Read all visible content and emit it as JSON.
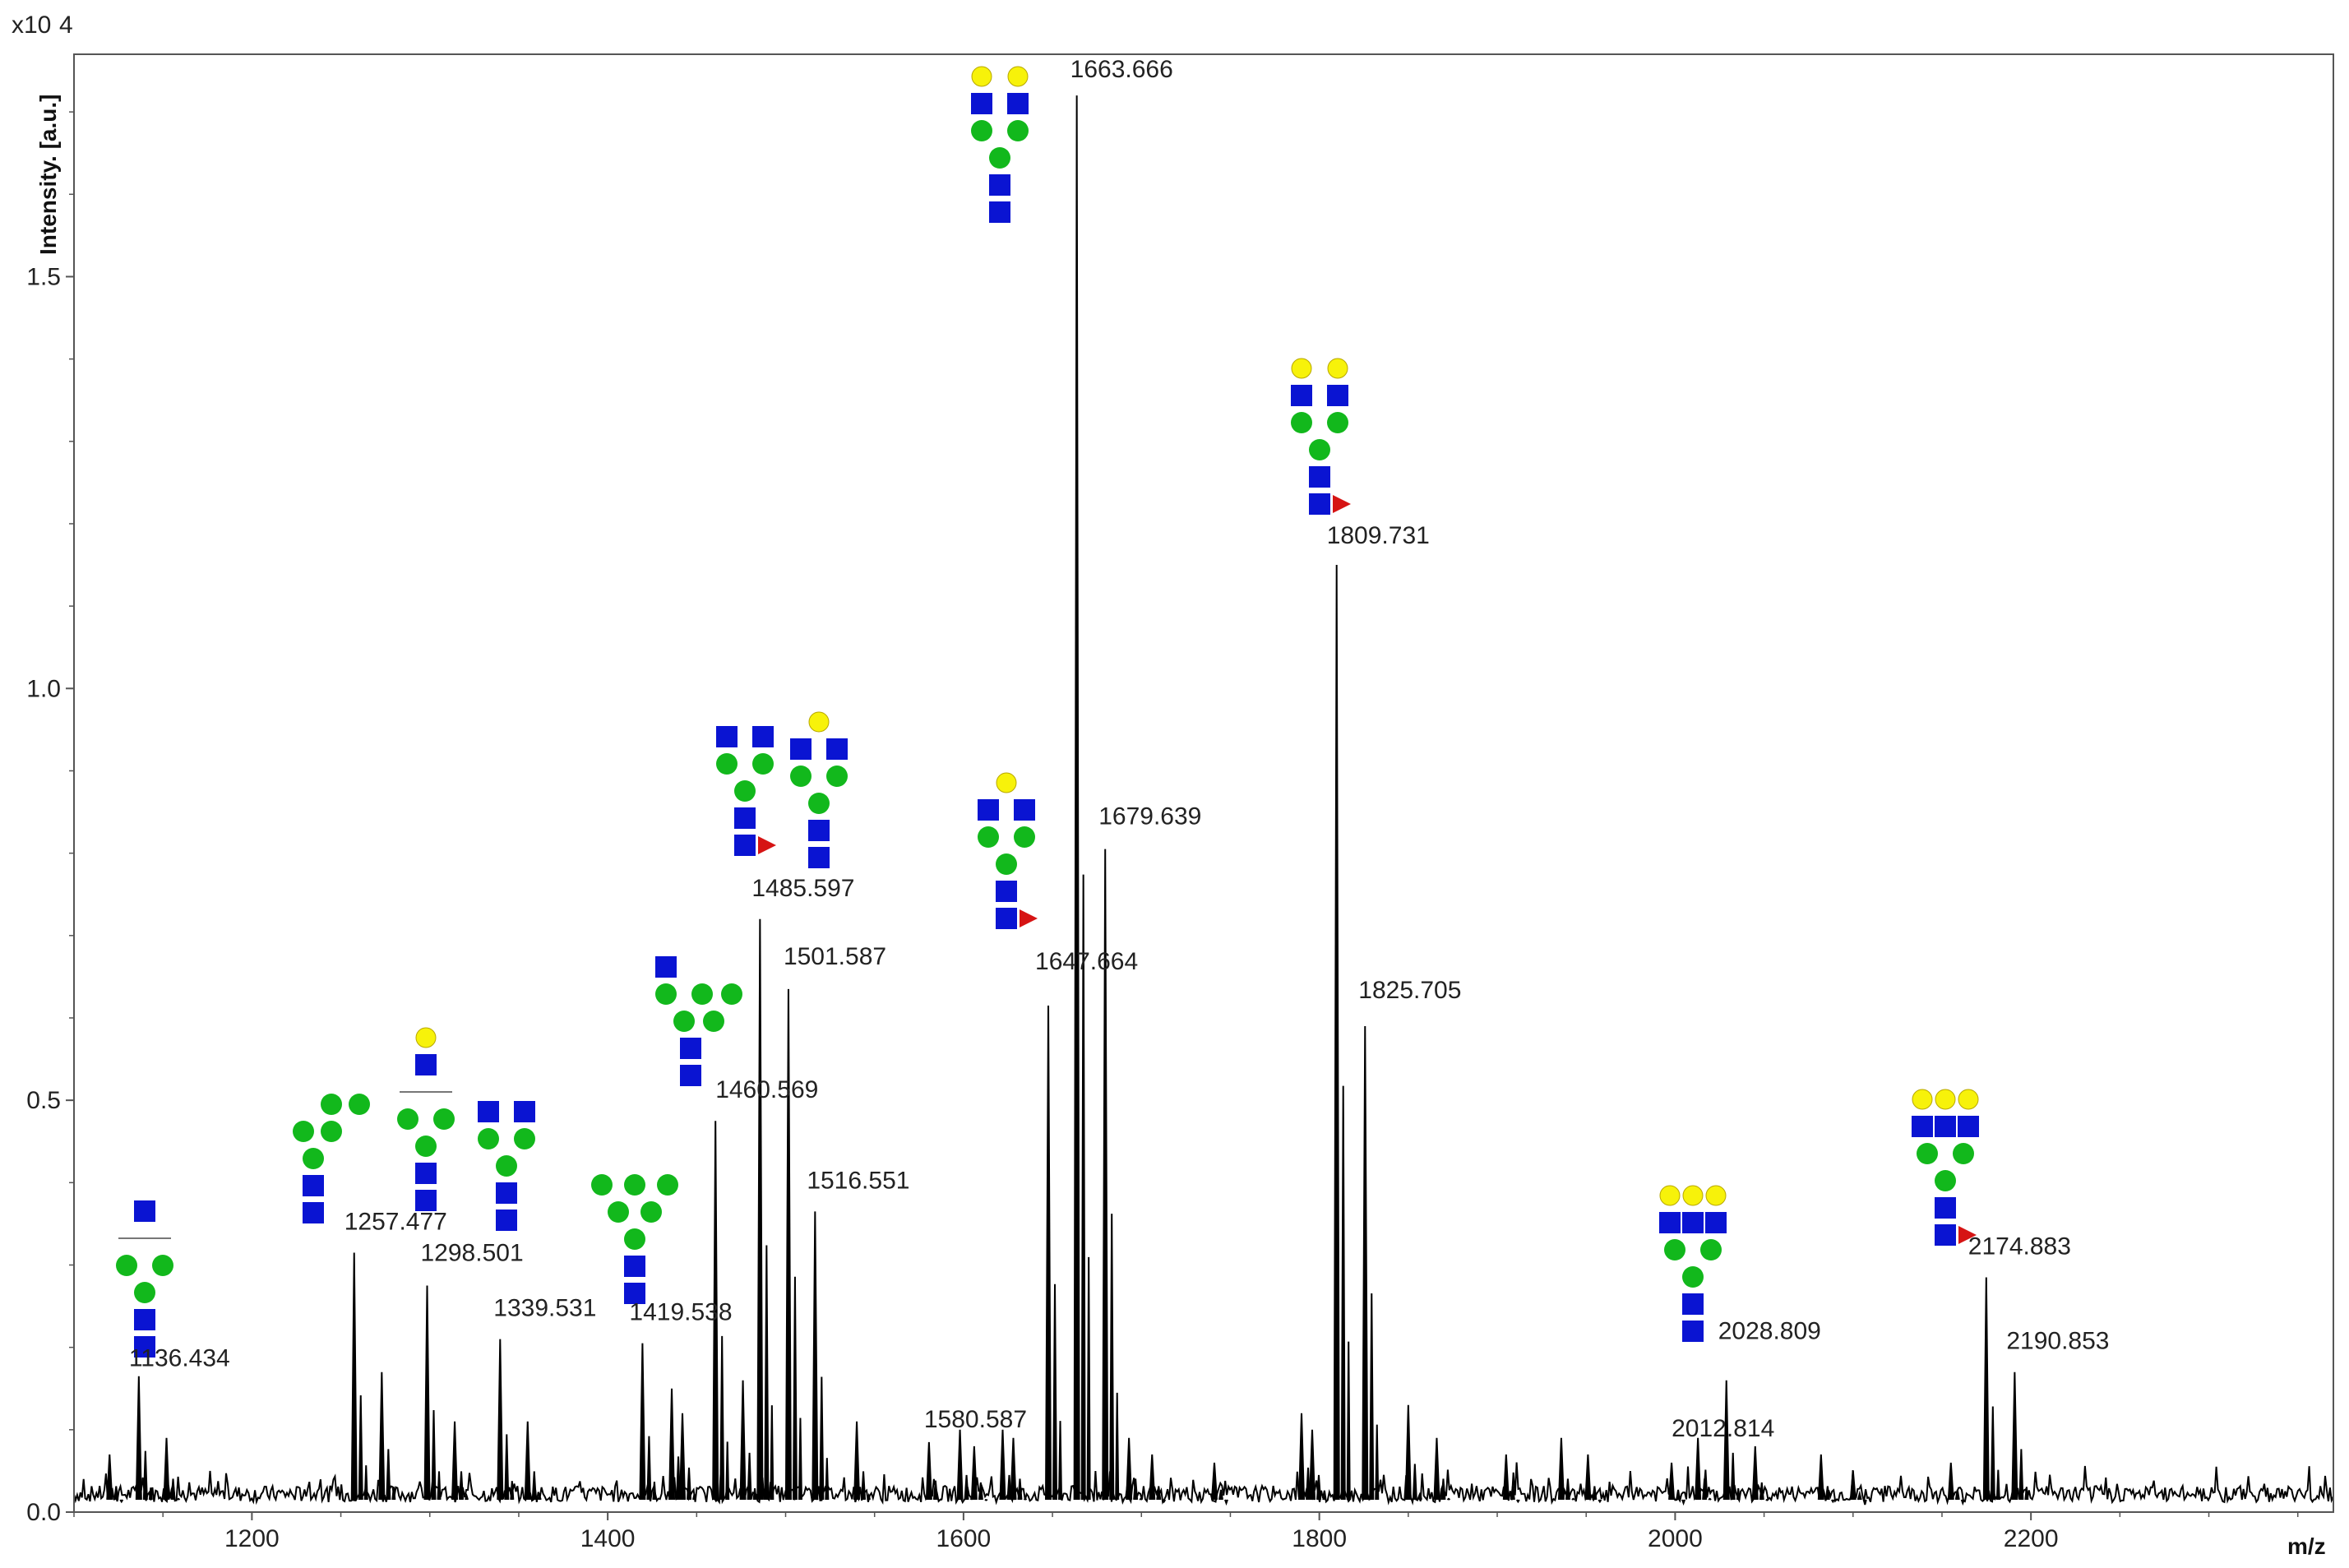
{
  "chart_data": {
    "type": "line",
    "title": "",
    "xlabel": "m/z",
    "ylabel": "Intensity. [a.u.]",
    "y_multiplier": "x10",
    "y_multiplier_exp": "4",
    "xlim": [
      1100,
      2370
    ],
    "ylim": [
      0,
      1.77
    ],
    "x_ticks": [
      "1200",
      "1400",
      "1600",
      "1800",
      "2000",
      "2200"
    ],
    "y_ticks": [
      "0.0",
      "0.5",
      "1.0",
      "1.5"
    ],
    "peaks": [
      {
        "mz": 1136.434,
        "label": "1136.434",
        "intensity": 0.165
      },
      {
        "mz": 1257.477,
        "label": "1257.477",
        "intensity": 0.315
      },
      {
        "mz": 1298.501,
        "label": "1298.501",
        "intensity": 0.275
      },
      {
        "mz": 1339.531,
        "label": "1339.531",
        "intensity": 0.21
      },
      {
        "mz": 1419.538,
        "label": "1419.538",
        "intensity": 0.205
      },
      {
        "mz": 1460.569,
        "label": "1460.569",
        "intensity": 0.475
      },
      {
        "mz": 1485.597,
        "label": "1485.597",
        "intensity": 0.72
      },
      {
        "mz": 1501.587,
        "label": "1501.587",
        "intensity": 0.635
      },
      {
        "mz": 1516.551,
        "label": "1516.551",
        "intensity": 0.365
      },
      {
        "mz": 1580.587,
        "label": "1580.587",
        "intensity": 0.085
      },
      {
        "mz": 1647.664,
        "label": "1647.664",
        "intensity": 0.615
      },
      {
        "mz": 1663.666,
        "label": "1663.666",
        "intensity": 1.72
      },
      {
        "mz": 1679.639,
        "label": "1679.639",
        "intensity": 0.805
      },
      {
        "mz": 1809.731,
        "label": "1809.731",
        "intensity": 1.15
      },
      {
        "mz": 1825.705,
        "label": "1825.705",
        "intensity": 0.59
      },
      {
        "mz": 2012.814,
        "label": "2012.814",
        "intensity": 0.09
      },
      {
        "mz": 2028.809,
        "label": "2028.809",
        "intensity": 0.16
      },
      {
        "mz": 2174.883,
        "label": "2174.883",
        "intensity": 0.285
      },
      {
        "mz": 2190.853,
        "label": "2190.853",
        "intensity": 0.17
      }
    ],
    "minor_peaks": [
      {
        "mz": 1120,
        "intensity": 0.07
      },
      {
        "mz": 1152,
        "intensity": 0.09
      },
      {
        "mz": 1273,
        "intensity": 0.17
      },
      {
        "mz": 1314,
        "intensity": 0.11
      },
      {
        "mz": 1355,
        "intensity": 0.11
      },
      {
        "mz": 1436,
        "intensity": 0.15
      },
      {
        "mz": 1442,
        "intensity": 0.12
      },
      {
        "mz": 1476,
        "intensity": 0.16
      },
      {
        "mz": 1540,
        "intensity": 0.11
      },
      {
        "mz": 1598,
        "intensity": 0.1
      },
      {
        "mz": 1606,
        "intensity": 0.08
      },
      {
        "mz": 1622,
        "intensity": 0.1
      },
      {
        "mz": 1628,
        "intensity": 0.09
      },
      {
        "mz": 1693,
        "intensity": 0.09
      },
      {
        "mz": 1706,
        "intensity": 0.07
      },
      {
        "mz": 1741,
        "intensity": 0.06
      },
      {
        "mz": 1790,
        "intensity": 0.12
      },
      {
        "mz": 1796,
        "intensity": 0.1
      },
      {
        "mz": 1850,
        "intensity": 0.13
      },
      {
        "mz": 1866,
        "intensity": 0.09
      },
      {
        "mz": 1905,
        "intensity": 0.07
      },
      {
        "mz": 1936,
        "intensity": 0.09
      },
      {
        "mz": 1951,
        "intensity": 0.07
      },
      {
        "mz": 1998,
        "intensity": 0.06
      },
      {
        "mz": 2045,
        "intensity": 0.08
      },
      {
        "mz": 2082,
        "intensity": 0.07
      },
      {
        "mz": 2100,
        "intensity": 0.05
      },
      {
        "mz": 2155,
        "intensity": 0.06
      }
    ],
    "glycan_annotations": [
      {
        "peak": "1136.434",
        "structure": "HexNAc2Hex3 core with bisecting HexNAc"
      },
      {
        "peak": "1257.477",
        "structure": "HexNAc2Hex5 high-mannose"
      },
      {
        "peak": "1298.501",
        "structure": "HexNAc3Hex4 with galactose"
      },
      {
        "peak": "1339.531",
        "structure": "HexNAc4Hex3"
      },
      {
        "peak": "1419.538",
        "structure": "HexNAc2Hex6 high-mannose"
      },
      {
        "peak": "1460.569",
        "structure": "HexNAc3Hex5 hybrid"
      },
      {
        "peak": "1485.597",
        "structure": "HexNAc4Hex3Fuc1"
      },
      {
        "peak": "1501.587",
        "structure": "HexNAc4Hex4"
      },
      {
        "peak": "1647.664",
        "structure": "HexNAc4Hex4Fuc1"
      },
      {
        "peak": "1663.666",
        "structure": "HexNAc4Hex5"
      },
      {
        "peak": "1809.731",
        "structure": "HexNAc4Hex5Fuc1"
      },
      {
        "peak": "2028.809",
        "structure": "HexNAc5Hex6"
      },
      {
        "peak": "2174.883",
        "structure": "HexNAc5Hex6Fuc1"
      }
    ]
  },
  "colors": {
    "hexnac": "#0a14d2",
    "mannose": "#12b81c",
    "galactose": "#f7f20a",
    "fucose": "#d61414",
    "line": "#000000"
  }
}
